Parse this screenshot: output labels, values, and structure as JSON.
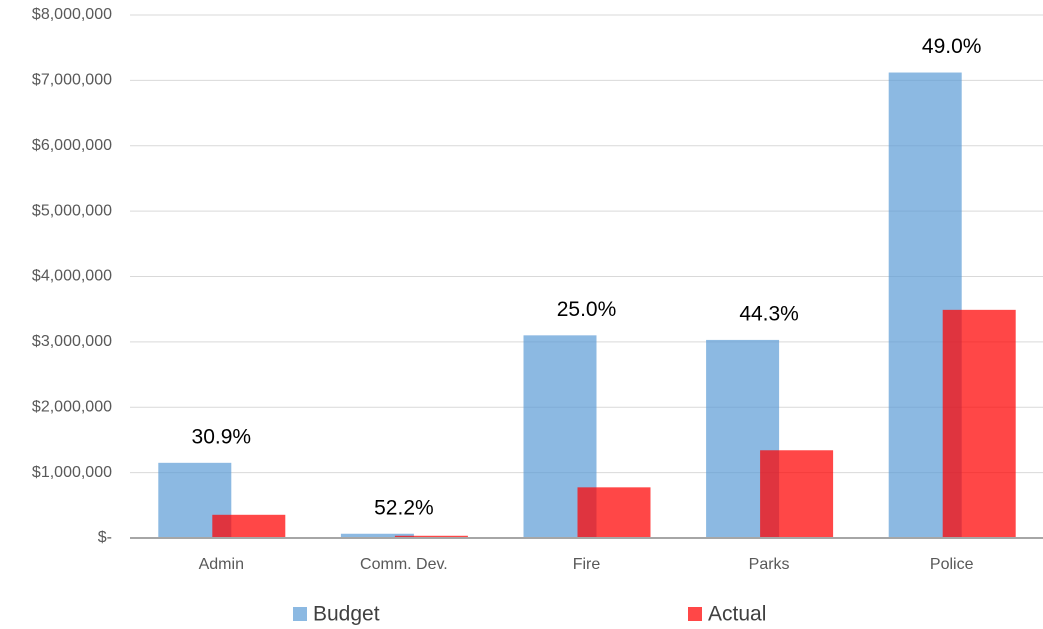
{
  "chart_data": {
    "type": "bar",
    "categories": [
      "Admin",
      "Comm. Dev.",
      "Fire",
      "Parks",
      "Police"
    ],
    "series": [
      {
        "name": "Budget",
        "color": "#5b9bd5",
        "values": [
          1150000,
          65000,
          3100000,
          3030000,
          7120000
        ]
      },
      {
        "name": "Actual",
        "color": "#ff0000",
        "values": [
          355000,
          34000,
          775000,
          1342000,
          3490000
        ]
      }
    ],
    "annotations": [
      "30.9%",
      "52.2%",
      "25.0%",
      "44.3%",
      "49.0%"
    ],
    "ylim": [
      0,
      8000000
    ],
    "yticks": [
      {
        "value": 0,
        "label": "$-"
      },
      {
        "value": 1000000,
        "label": "$1,000,000"
      },
      {
        "value": 2000000,
        "label": "$2,000,000"
      },
      {
        "value": 3000000,
        "label": "$3,000,000"
      },
      {
        "value": 4000000,
        "label": "$4,000,000"
      },
      {
        "value": 5000000,
        "label": "$5,000,000"
      },
      {
        "value": 6000000,
        "label": "$6,000,000"
      },
      {
        "value": 7000000,
        "label": "$7,000,000"
      },
      {
        "value": 8000000,
        "label": "$8,000,000"
      }
    ],
    "grid": true,
    "legend": "bottom"
  }
}
